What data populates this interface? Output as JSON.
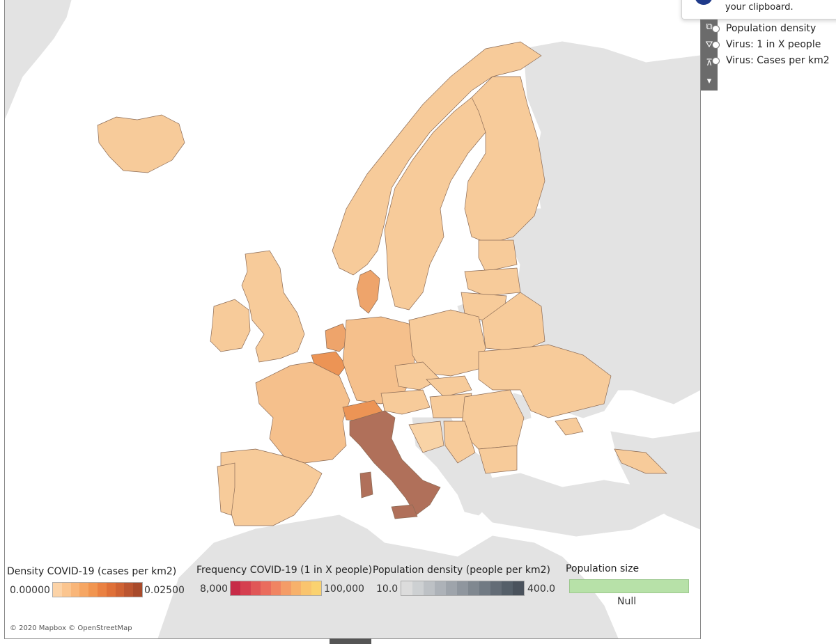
{
  "tooltip": {
    "text": "your clipboard."
  },
  "toolbar": {
    "icons": [
      "external-link-icon",
      "filter-icon",
      "pin-icon",
      "chevron-down-icon"
    ],
    "glyphs": [
      "⧉",
      "⛛",
      "⊼",
      "▾"
    ]
  },
  "layers": {
    "items": [
      "Population density",
      "Virus: 1 in X people",
      "Virus: Cases per km2"
    ]
  },
  "legends": {
    "density": {
      "title": "Density COVID-19 (cases per km2)",
      "min": "0.00000",
      "max": "0.02500",
      "colors": [
        "#fcd3a7",
        "#fbc58f",
        "#f9b679",
        "#f6a663",
        "#f19550",
        "#ea8142",
        "#df7038",
        "#cf6233",
        "#bb5530",
        "#a84a2b"
      ]
    },
    "frequency": {
      "title": "Frequency COVID-19 (1 in X people)",
      "min": "8,000",
      "max": "100,000",
      "colors": [
        "#c72b47",
        "#d53f4f",
        "#e05657",
        "#ea6c5d",
        "#f08462",
        "#f49c67",
        "#f7b16b",
        "#f9c46e",
        "#fad270"
      ]
    },
    "population_density": {
      "title": "Population density (people per km2)",
      "min": "10.0",
      "max": "400.0",
      "colors": [
        "#dcdcdc",
        "#cdd0d2",
        "#bdc1c5",
        "#adb2b8",
        "#9ea4ab",
        "#8f969e",
        "#808890",
        "#717a83",
        "#636c76",
        "#555f69",
        "#4a525c"
      ]
    },
    "population_size": {
      "title": "Population size",
      "null_label": "Null",
      "color": "#b7e1a8"
    }
  },
  "attribution": "© 2020 Mapbox © OpenStreetMap",
  "colors": {
    "italy": "#b0705a",
    "switzerland": "#ec9455",
    "benelux": "#eea46b",
    "default_fill": "#f7cb9a",
    "light_fill": "#f9d3a6",
    "non_data_land": "#e3e3e3",
    "sea": "#ffffff"
  }
}
